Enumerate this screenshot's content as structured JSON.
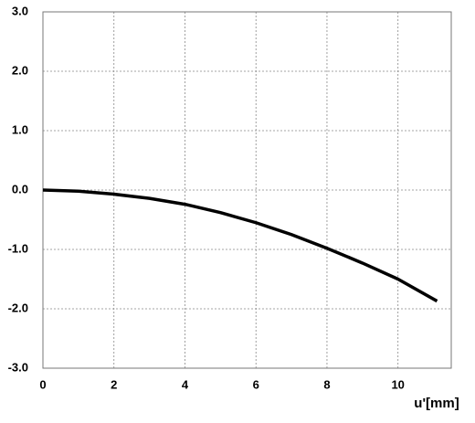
{
  "chart_data": {
    "type": "line",
    "x_label": "u'[mm]",
    "x": [
      0,
      1,
      2,
      3,
      4,
      5,
      6,
      7,
      8,
      9,
      10,
      11.1
    ],
    "series": [
      {
        "color": "#000000",
        "values": [
          0,
          -0.02,
          -0.07,
          -0.14,
          -0.24,
          -0.38,
          -0.55,
          -0.75,
          -0.98,
          -1.23,
          -1.5,
          -1.87
        ]
      }
    ],
    "xlim": [
      0,
      11.5
    ],
    "xticks": [
      0,
      2,
      4,
      6,
      8,
      10
    ],
    "ylim": [
      -3,
      3
    ],
    "yticks": [
      {
        "value": 3,
        "label": "3.0"
      },
      {
        "value": 2,
        "label": "2.0"
      },
      {
        "value": 1,
        "label": "1.0"
      },
      {
        "value": 0,
        "label": "0.0"
      },
      {
        "value": -1,
        "label": "-1.0"
      },
      {
        "value": -2,
        "label": "-2.0"
      },
      {
        "value": -3,
        "label": "-3.0"
      }
    ],
    "grid": true
  }
}
